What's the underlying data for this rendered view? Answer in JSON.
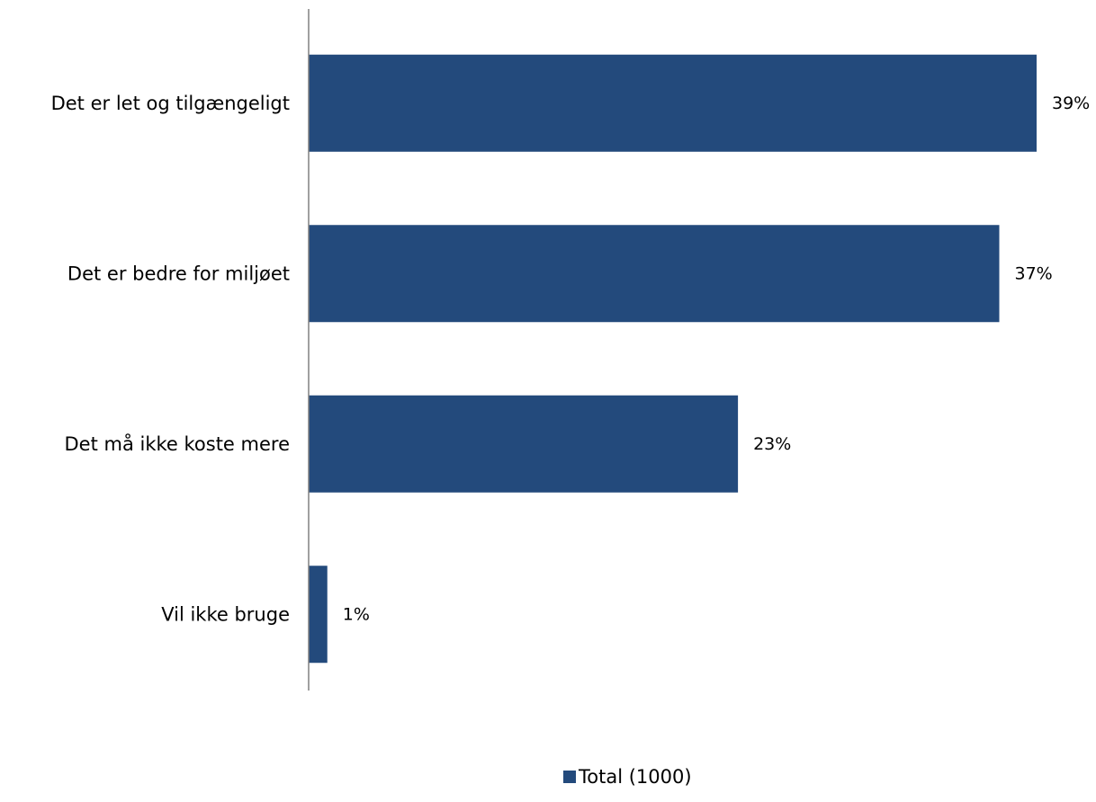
{
  "chart_data": {
    "type": "bar",
    "orientation": "horizontal",
    "categories": [
      "Det er let og tilgængeligt",
      "Det er bedre for miljøet",
      "Det må ikke koste mere",
      "Vil ikke bruge"
    ],
    "series": [
      {
        "name": "Total (1000)",
        "values": [
          39,
          37,
          23,
          1
        ]
      }
    ],
    "value_labels": [
      "39%",
      "37%",
      "23%",
      "1%"
    ],
    "unit": "%",
    "xlim": [
      0,
      39
    ],
    "grid": false,
    "legend": "bottom",
    "bar_color": "#234A7C",
    "axis_color": "#808080"
  }
}
